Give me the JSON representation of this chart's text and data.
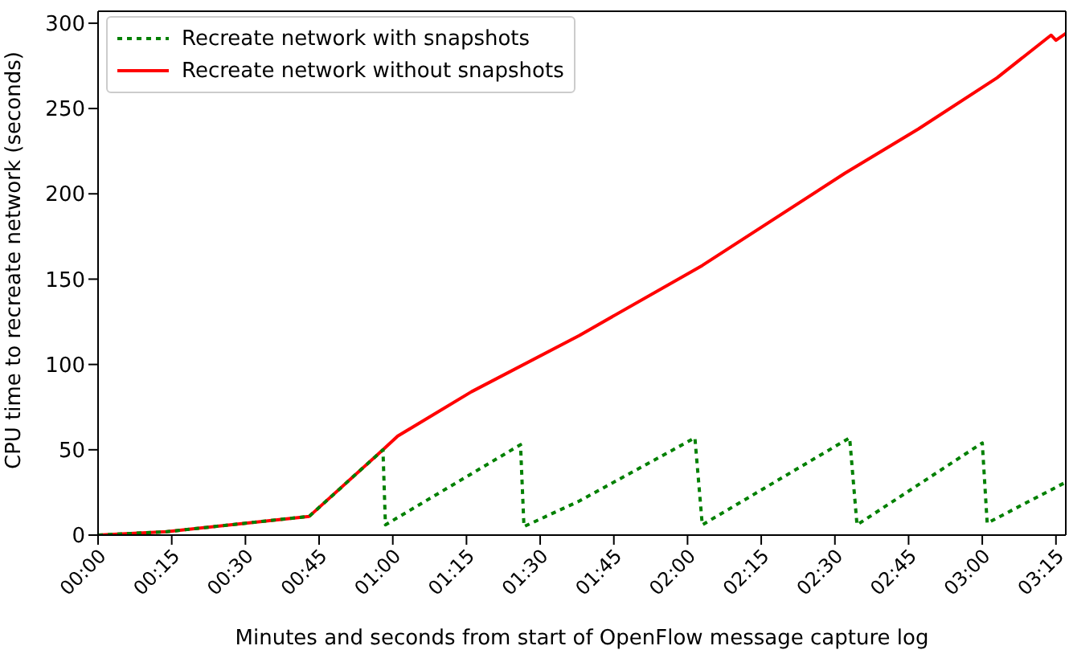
{
  "chart_data": {
    "type": "line",
    "xlabel": "Minutes and seconds from start of OpenFlow message capture log",
    "ylabel": "CPU time to recreate network (seconds)",
    "xlim": [
      0,
      197
    ],
    "ylim": [
      0,
      307
    ],
    "xticks": [
      {
        "value": 0,
        "label": "00:00"
      },
      {
        "value": 15,
        "label": "00:15"
      },
      {
        "value": 30,
        "label": "00:30"
      },
      {
        "value": 45,
        "label": "00:45"
      },
      {
        "value": 60,
        "label": "01:00"
      },
      {
        "value": 75,
        "label": "01:15"
      },
      {
        "value": 90,
        "label": "01:30"
      },
      {
        "value": 105,
        "label": "01:45"
      },
      {
        "value": 120,
        "label": "02:00"
      },
      {
        "value": 135,
        "label": "02:15"
      },
      {
        "value": 150,
        "label": "02:30"
      },
      {
        "value": 165,
        "label": "02:45"
      },
      {
        "value": 180,
        "label": "03:00"
      },
      {
        "value": 195,
        "label": "03:15"
      }
    ],
    "yticks": [
      0,
      50,
      100,
      150,
      200,
      250,
      300
    ],
    "grid": false,
    "legend": "top left",
    "marker": "none",
    "series": [
      {
        "name": "Recreate network with snapshots",
        "color": "#008000",
        "line_style": "dotted",
        "x": [
          0,
          14,
          43,
          58,
          58.5,
          86,
          86.7,
          98,
          121.5,
          123,
          153,
          154.5,
          180,
          181,
          197
        ],
        "values": [
          0,
          2,
          11,
          50,
          6,
          53,
          5,
          20,
          57,
          6,
          57,
          6,
          54,
          7,
          31
        ]
      },
      {
        "name": "Recreate network without snapshots",
        "color": "#ff0000",
        "line_style": "solid",
        "x": [
          0,
          14,
          43,
          58,
          61,
          76,
          98,
          101,
          123,
          152,
          167,
          183,
          194,
          195,
          197
        ],
        "values": [
          0,
          2,
          11,
          50,
          58,
          84,
          117,
          122,
          158,
          212,
          238,
          268,
          293,
          290,
          294
        ]
      }
    ]
  }
}
